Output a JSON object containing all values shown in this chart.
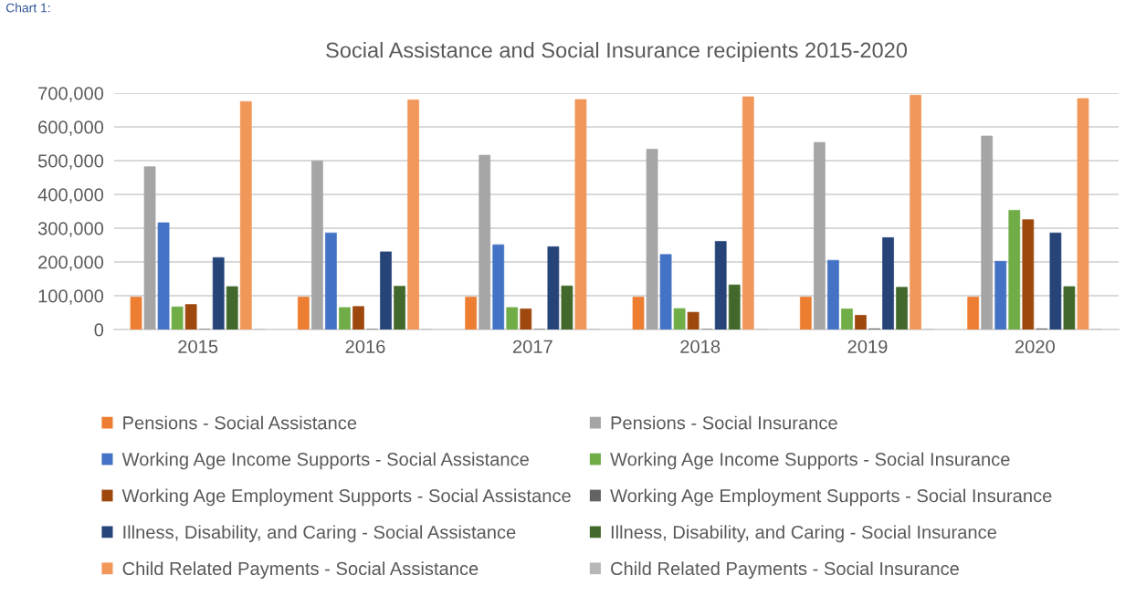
{
  "chart_data": {
    "type": "bar",
    "title": "Social Assistance and Social Insurance recipients 2015-2020",
    "annotations": [
      "Chart 1:"
    ],
    "categories": [
      "2015",
      "2016",
      "2017",
      "2018",
      "2019",
      "2020"
    ],
    "series": [
      {
        "name": "Pensions - Social Assistance",
        "color": "#ed7d31",
        "values": [
          96000,
          96000,
          96000,
          96000,
          96000,
          96000
        ]
      },
      {
        "name": "Pensions - Social Insurance",
        "color": "#a5a5a5",
        "values": [
          482000,
          499000,
          516000,
          534000,
          554000,
          573000
        ]
      },
      {
        "name": "Working Age Income Supports - Social Assistance",
        "color": "#4472c4",
        "values": [
          316000,
          286000,
          251000,
          222000,
          205000,
          202000
        ]
      },
      {
        "name": "Working Age Income Supports - Social Insurance",
        "color": "#70ad47",
        "values": [
          67000,
          65000,
          65000,
          62000,
          61000,
          353000
        ]
      },
      {
        "name": "Working Age Employment Supports - Social Assistance",
        "color": "#9e480e",
        "values": [
          74000,
          68000,
          61000,
          51000,
          42000,
          325000
        ]
      },
      {
        "name": "Working Age Employment Supports - Social Insurance",
        "color": "#636363",
        "values": [
          0,
          0,
          0,
          0,
          2000,
          2000
        ]
      },
      {
        "name": "Illness, Disability, and Caring - Social Assistance",
        "color": "#264478",
        "values": [
          213000,
          230000,
          245000,
          261000,
          272000,
          286000
        ]
      },
      {
        "name": "Illness, Disability, and Caring - Social Insurance",
        "color": "#43682b",
        "values": [
          127000,
          128000,
          129000,
          132000,
          125000,
          127000
        ]
      },
      {
        "name": "Child Related Payments - Social Assistance",
        "color": "#f1975a",
        "values": [
          675000,
          680000,
          681000,
          689000,
          694000,
          684000
        ]
      },
      {
        "name": "Child Related Payments - Social Insurance",
        "color": "#b7b7b7",
        "values": [
          0,
          0,
          0,
          0,
          0,
          0
        ]
      }
    ],
    "ylim": [
      0,
      700000
    ],
    "yticks": [
      0,
      {
        "value": 100000,
        "label": "100,000"
      },
      {
        "value": 200000,
        "label": "200,000"
      },
      {
        "value": 300000,
        "label": "300,000"
      },
      {
        "value": 400000,
        "label": "400,000"
      },
      {
        "value": 500000,
        "label": "500,000"
      },
      {
        "value": 600000,
        "label": "600,000"
      },
      {
        "value": 700000,
        "label": "700,000"
      }
    ],
    "grid": "y",
    "legend": "bottom"
  }
}
